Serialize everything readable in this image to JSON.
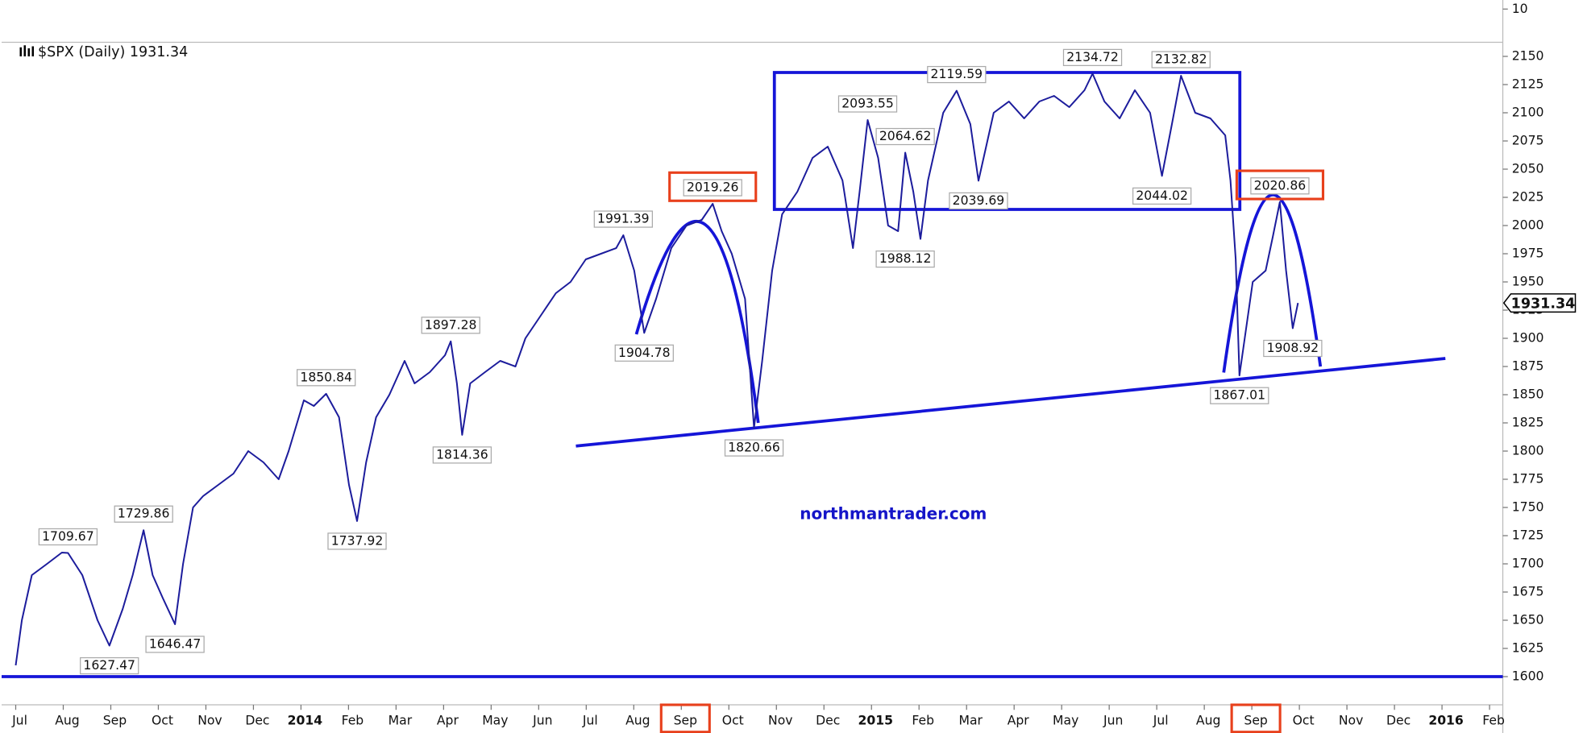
{
  "chart_data": {
    "type": "line",
    "title": "$SPX (Daily) 1931.34",
    "watermark": "northmantrader.com",
    "last_value": 1931.34,
    "upper_panel_ticks": [
      10
    ],
    "color": "#1c1c9c",
    "x": [
      0.0,
      0.13,
      0.34,
      0.66,
      0.97,
      1.1,
      1.4,
      1.72,
      1.97,
      2.25,
      2.46,
      2.69,
      2.88,
      3.09,
      3.35,
      3.52,
      3.73,
      3.94,
      4.26,
      4.58,
      4.89,
      5.21,
      5.53,
      5.74,
      6.06,
      6.27,
      6.53,
      6.8,
      7.01,
      7.18,
      7.37,
      7.58,
      7.86,
      8.18,
      8.39,
      8.71,
      9.03,
      9.15,
      9.28,
      9.39,
      9.56,
      9.87,
      10.19,
      10.51,
      10.72,
      11.04,
      11.36,
      11.67,
      11.99,
      12.31,
      12.63,
      12.78,
      13.01,
      13.22,
      13.47,
      13.79,
      14.11,
      14.43,
      14.66,
      14.85,
      15.06,
      15.34,
      15.53,
      15.7,
      15.91,
      16.12,
      16.44,
      16.76,
      17.08,
      17.39,
      17.61,
      17.75,
      17.92,
      18.14,
      18.35,
      18.56,
      18.71,
      18.88,
      19.03,
      19.19,
      19.51,
      19.79,
      20.08,
      20.25,
      20.57,
      20.89,
      21.21,
      21.53,
      21.84,
      22.16,
      22.48,
      22.65,
      22.9,
      23.22,
      23.54,
      23.86,
      24.11,
      24.32,
      24.51,
      24.81,
      25.13,
      25.44,
      25.55,
      25.66,
      25.74,
      26.02,
      26.29,
      26.44,
      26.59,
      26.72,
      26.86,
      26.97
    ],
    "values": [
      1610,
      1650,
      1690,
      1700,
      1710,
      1709.67,
      1690,
      1650,
      1627.47,
      1660,
      1690,
      1729.86,
      1690,
      1670,
      1646.47,
      1700,
      1750,
      1760,
      1770,
      1780,
      1800,
      1790,
      1775,
      1800,
      1845,
      1840,
      1850.84,
      1830,
      1770,
      1737.92,
      1790,
      1830,
      1850,
      1880,
      1860,
      1870,
      1885,
      1897.28,
      1860,
      1814.36,
      1860,
      1870,
      1880,
      1875,
      1900,
      1920,
      1940,
      1950,
      1970,
      1975,
      1980,
      1991.39,
      1960,
      1904.78,
      1935,
      1980,
      2000,
      2005,
      2019.26,
      1995,
      1975,
      1935,
      1820.66,
      1880,
      1960,
      2010,
      2030,
      2060,
      2070,
      2040,
      1980,
      2030,
      2093.55,
      2060,
      2000,
      1995,
      2064.62,
      2030,
      1988.12,
      2040,
      2100,
      2119.59,
      2090,
      2039.69,
      2100,
      2110,
      2095,
      2110,
      2115,
      2105,
      2120,
      2134.72,
      2110,
      2095,
      2120,
      2100,
      2044.02,
      2090,
      2132.82,
      2100,
      2095,
      2080,
      2040,
      1970,
      1867.01,
      1950,
      1960,
      1990,
      2020.86,
      1960,
      1908.92,
      1931.34
    ],
    "annotations": [
      {
        "x": 1.1,
        "y": 1709.67,
        "side": "above"
      },
      {
        "x": 1.97,
        "y": 1627.47,
        "side": "below"
      },
      {
        "x": 2.69,
        "y": 1729.86,
        "side": "above"
      },
      {
        "x": 3.35,
        "y": 1646.47,
        "side": "below"
      },
      {
        "x": 6.53,
        "y": 1850.84,
        "side": "above"
      },
      {
        "x": 7.18,
        "y": 1737.92,
        "side": "below"
      },
      {
        "x": 9.15,
        "y": 1897.28,
        "side": "above"
      },
      {
        "x": 9.39,
        "y": 1814.36,
        "side": "below"
      },
      {
        "x": 12.78,
        "y": 1991.39,
        "side": "above"
      },
      {
        "x": 13.22,
        "y": 1904.78,
        "side": "below"
      },
      {
        "x": 14.66,
        "y": 2019.26,
        "side": "above",
        "boxed": true
      },
      {
        "x": 15.53,
        "y": 1820.66,
        "side": "below"
      },
      {
        "x": 17.92,
        "y": 2093.55,
        "side": "above"
      },
      {
        "x": 18.71,
        "y": 2064.62,
        "side": "above"
      },
      {
        "x": 18.71,
        "y": 1988.12,
        "side": "below"
      },
      {
        "x": 19.79,
        "y": 2119.59,
        "side": "above"
      },
      {
        "x": 20.25,
        "y": 2039.69,
        "side": "below"
      },
      {
        "x": 22.65,
        "y": 2134.72,
        "side": "above"
      },
      {
        "x": 24.51,
        "y": 2132.82,
        "side": "above"
      },
      {
        "x": 24.11,
        "y": 2044.02,
        "side": "below"
      },
      {
        "x": 26.59,
        "y": 2020.86,
        "side": "above",
        "boxed": true
      },
      {
        "x": 25.74,
        "y": 1867.01,
        "side": "below"
      },
      {
        "x": 26.86,
        "y": 1908.92,
        "side": "below"
      }
    ],
    "horizontal_line": 1600,
    "xlim": [
      0,
      31.3
    ],
    "xticks": [
      {
        "value": 0,
        "label": "Jul"
      },
      {
        "value": 1,
        "label": "Aug"
      },
      {
        "value": 2,
        "label": "Sep"
      },
      {
        "value": 3,
        "label": "Oct"
      },
      {
        "value": 4,
        "label": "Nov"
      },
      {
        "value": 5,
        "label": "Dec"
      },
      {
        "value": 6,
        "label": "2014"
      },
      {
        "value": 7,
        "label": "Feb"
      },
      {
        "value": 8,
        "label": "Mar"
      },
      {
        "value": 9,
        "label": "Apr"
      },
      {
        "value": 10,
        "label": "May"
      },
      {
        "value": 11,
        "label": "Jun"
      },
      {
        "value": 12,
        "label": "Jul"
      },
      {
        "value": 13,
        "label": "Aug"
      },
      {
        "value": 14,
        "label": "Sep"
      },
      {
        "value": 15,
        "label": "Oct"
      },
      {
        "value": 16,
        "label": "Nov"
      },
      {
        "value": 17,
        "label": "Dec"
      },
      {
        "value": 18,
        "label": "2015"
      },
      {
        "value": 19,
        "label": "Feb"
      },
      {
        "value": 20,
        "label": "Mar"
      },
      {
        "value": 21,
        "label": "Apr"
      },
      {
        "value": 22,
        "label": "May"
      },
      {
        "value": 23,
        "label": "Jun"
      },
      {
        "value": 24,
        "label": "Jul"
      },
      {
        "value": 25,
        "label": "Aug"
      },
      {
        "value": 26,
        "label": "Sep"
      },
      {
        "value": 27,
        "label": "Oct"
      },
      {
        "value": 28,
        "label": "Nov"
      },
      {
        "value": 29,
        "label": "Dec"
      },
      {
        "value": 30,
        "label": "2016"
      },
      {
        "value": 31,
        "label": "Feb"
      }
    ],
    "highlighted_xticks": [
      14,
      26
    ],
    "ylim": [
      1575,
      2162.5
    ],
    "yticks": [
      1600,
      1625,
      1650,
      1675,
      1700,
      1725,
      1750,
      1775,
      1800,
      1825,
      1850,
      1875,
      1900,
      1925,
      1950,
      1975,
      2000,
      2025,
      2050,
      2075,
      2100,
      2125,
      2150
    ],
    "grid": false
  }
}
